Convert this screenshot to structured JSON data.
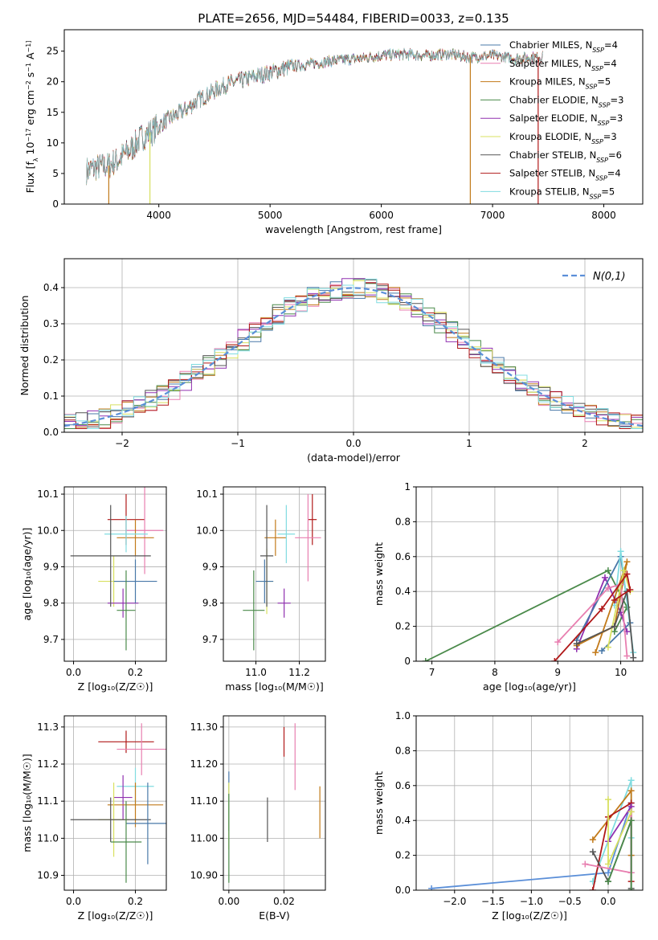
{
  "figure": {
    "title": "PLATE=2656, MJD=54484, FIBERID=0033, z=0.135"
  },
  "chart_data": [
    {
      "id": "spectrum",
      "type": "line",
      "xlabel": "wavelength [Angstrom, rest frame]",
      "ylabel": "Flux [f_λ 10^-17 erg cm^-2 s^-1 A^-1]",
      "xlim": [
        3150,
        8350
      ],
      "ylim": [
        0,
        28.5
      ],
      "xticks": [
        4000,
        5000,
        6000,
        7000,
        8000
      ],
      "yticks": [
        0,
        5,
        10,
        15,
        20,
        25
      ],
      "grid": false,
      "legend_position": "right",
      "continuum": {
        "x": [
          3350,
          3450,
          3550,
          3650,
          3750,
          3850,
          3950,
          4050,
          4150,
          4250,
          4350,
          4450,
          4600,
          4800,
          5000,
          5200,
          5400,
          5600,
          5800,
          6000,
          6200,
          6400,
          6600,
          6800,
          7000,
          7200,
          7400
        ],
        "y": [
          5.5,
          6.0,
          6.3,
          7.5,
          9.0,
          11.0,
          12.0,
          13.5,
          14.5,
          15.5,
          17.0,
          18.0,
          19.5,
          20.5,
          21.5,
          22.5,
          23.0,
          23.5,
          23.8,
          24.3,
          24.5,
          24.3,
          24.5,
          24.0,
          24.3,
          23.8,
          24.0
        ]
      },
      "series": [
        {
          "name": "Chabrier MILES",
          "nssp": "4",
          "color": "#4878a8"
        },
        {
          "name": "Salpeter MILES",
          "nssp": "4",
          "color": "#e87fb0"
        },
        {
          "name": "Kroupa MILES",
          "nssp": "5",
          "color": "#c27a1a"
        },
        {
          "name": "Chabrier ELODIE",
          "nssp": "3",
          "color": "#4a8a4a"
        },
        {
          "name": "Salpeter ELODIE",
          "nssp": "3",
          "color": "#9030b0"
        },
        {
          "name": "Kroupa ELODIE",
          "nssp": "3",
          "color": "#d8e060"
        },
        {
          "name": "Chabrier STELIB",
          "nssp": "6",
          "color": "#555555"
        },
        {
          "name": "Salpeter STELIB",
          "nssp": "4",
          "color": "#b01818"
        },
        {
          "name": "Kroupa STELIB",
          "nssp": "5",
          "color": "#80dce0"
        }
      ]
    },
    {
      "id": "residuals",
      "type": "line",
      "xlabel": "(data-model)/error",
      "ylabel": "Normed distribution",
      "xlim": [
        -2.5,
        2.5
      ],
      "ylim": [
        0,
        0.48
      ],
      "xticks": [
        -2,
        -1,
        0,
        1,
        2
      ],
      "yticks": [
        0.0,
        0.1,
        0.2,
        0.3,
        0.4
      ],
      "grid": true,
      "legend_position": "top-right",
      "reference_label": "N(0,1)",
      "reference_color": "#5b8fd8",
      "bin_width": 0.1
    },
    {
      "id": "Z-age",
      "type": "scatter",
      "xlabel": "Z [log10(Z/Z☉)]",
      "ylabel": "age [log10(age/yr)]",
      "xlim": [
        -0.03,
        0.3
      ],
      "ylim": [
        9.64,
        10.12
      ],
      "xticks": [
        0.0,
        0.2
      ],
      "yticks": [
        9.7,
        9.8,
        9.9,
        10.0,
        10.1
      ],
      "grid": true,
      "points": [
        {
          "x": 0.17,
          "y": 10.03,
          "xerr": 0.06,
          "yerr": 0.07,
          "color": "#b01818"
        },
        {
          "x": 0.23,
          "y": 10.0,
          "xerr": 0.06,
          "yerr": 0.12,
          "color": "#e87fb0"
        },
        {
          "x": 0.2,
          "y": 9.98,
          "xerr": 0.06,
          "yerr": 0.05,
          "color": "#c27a1a"
        },
        {
          "x": 0.17,
          "y": 9.99,
          "xerr": 0.07,
          "yerr": 0.05,
          "color": "#80dce0"
        },
        {
          "x": 0.13,
          "y": 9.86,
          "xerr": 0.05,
          "yerr": 0.07,
          "color": "#d8e060"
        },
        {
          "x": 0.16,
          "y": 9.8,
          "xerr": 0.05,
          "yerr": 0.04,
          "color": "#9030b0"
        },
        {
          "x": 0.2,
          "y": 9.86,
          "xerr": 0.07,
          "yerr": 0.06,
          "color": "#4878a8"
        },
        {
          "x": 0.17,
          "y": 9.78,
          "xerr": 0.03,
          "yerr": 0.11,
          "color": "#4a8a4a"
        },
        {
          "x": 0.12,
          "y": 9.93,
          "xerr": 0.13,
          "yerr": 0.14,
          "color": "#555555"
        }
      ]
    },
    {
      "id": "mass-age",
      "type": "scatter",
      "xlabel": "mass [log10(M/M☉)]",
      "ylabel": "",
      "xlim": [
        10.85,
        11.32
      ],
      "ylim": [
        9.64,
        10.12
      ],
      "xticks": [
        11.0,
        11.2
      ],
      "yticks": [
        9.7,
        9.8,
        9.9,
        10.0,
        10.1
      ],
      "grid": true,
      "points": [
        {
          "x": 11.26,
          "y": 10.03,
          "xerr": 0.02,
          "yerr": 0.07,
          "color": "#b01818"
        },
        {
          "x": 11.24,
          "y": 9.98,
          "xerr": 0.06,
          "yerr": 0.12,
          "color": "#e87fb0"
        },
        {
          "x": 11.09,
          "y": 9.98,
          "xerr": 0.05,
          "yerr": 0.05,
          "color": "#c27a1a"
        },
        {
          "x": 11.14,
          "y": 9.99,
          "xerr": 0.04,
          "yerr": 0.08,
          "color": "#80dce0"
        },
        {
          "x": 11.05,
          "y": 9.86,
          "xerr": 0.03,
          "yerr": 0.09,
          "color": "#d8e060"
        },
        {
          "x": 11.13,
          "y": 9.8,
          "xerr": 0.03,
          "yerr": 0.04,
          "color": "#9030b0"
        },
        {
          "x": 11.04,
          "y": 9.86,
          "xerr": 0.04,
          "yerr": 0.06,
          "color": "#4878a8"
        },
        {
          "x": 10.99,
          "y": 9.78,
          "xerr": 0.05,
          "yerr": 0.11,
          "color": "#4a8a4a"
        },
        {
          "x": 11.05,
          "y": 9.93,
          "xerr": 0.03,
          "yerr": 0.14,
          "color": "#555555"
        }
      ]
    },
    {
      "id": "age-massweight",
      "type": "line",
      "xlabel": "age [log10(age/yr)]",
      "ylabel": "mass weight",
      "xlim": [
        6.75,
        10.35
      ],
      "ylim": [
        0,
        1.0
      ],
      "xticks": [
        7,
        8,
        9,
        10
      ],
      "yticks": [
        0.0,
        0.2,
        0.4,
        0.6,
        0.8,
        1.0
      ],
      "grid": true,
      "series": [
        {
          "color": "#4a8a4a",
          "points": [
            [
              6.9,
              0.0
            ],
            [
              9.8,
              0.52
            ],
            [
              10.1,
              0.31
            ],
            [
              9.9,
              0.17
            ]
          ]
        },
        {
          "color": "#9030b0",
          "points": [
            [
              9.3,
              0.07
            ],
            [
              9.75,
              0.48
            ],
            [
              10.0,
              0.28
            ],
            [
              10.1,
              0.17
            ]
          ]
        },
        {
          "color": "#4878a8",
          "points": [
            [
              9.3,
              0.12
            ],
            [
              10.0,
              0.6
            ],
            [
              10.15,
              0.22
            ],
            [
              9.7,
              0.06
            ]
          ]
        },
        {
          "color": "#80dce0",
          "points": [
            [
              10.2,
              0.05
            ],
            [
              10.0,
              0.63
            ],
            [
              9.9,
              0.32
            ]
          ]
        },
        {
          "color": "#c27a1a",
          "points": [
            [
              9.6,
              0.05
            ],
            [
              10.1,
              0.57
            ],
            [
              9.9,
              0.2
            ],
            [
              9.3,
              0.09
            ]
          ]
        },
        {
          "color": "#e87fb0",
          "points": [
            [
              9.0,
              0.11
            ],
            [
              9.8,
              0.42
            ],
            [
              10.0,
              0.44
            ],
            [
              10.1,
              0.03
            ]
          ]
        },
        {
          "color": "#d8e060",
          "points": [
            [
              9.8,
              0.08
            ],
            [
              10.05,
              0.52
            ],
            [
              10.15,
              0.4
            ]
          ]
        },
        {
          "color": "#555555",
          "points": [
            [
              9.3,
              0.1
            ],
            [
              9.9,
              0.2
            ],
            [
              10.1,
              0.4
            ],
            [
              10.2,
              0.02
            ]
          ]
        },
        {
          "color": "#b01818",
          "points": [
            [
              8.95,
              0.0
            ],
            [
              9.7,
              0.3
            ],
            [
              10.1,
              0.5
            ],
            [
              10.15,
              0.41
            ],
            [
              9.9,
              0.35
            ]
          ]
        }
      ]
    },
    {
      "id": "Z-mass",
      "type": "scatter",
      "xlabel": "Z [log10(Z/Z☉)]",
      "ylabel": "mass [log10(M/M☉)]",
      "xlim": [
        -0.03,
        0.3
      ],
      "ylim": [
        10.86,
        11.33
      ],
      "xticks": [
        0.0,
        0.2
      ],
      "yticks": [
        10.9,
        11.0,
        11.1,
        11.2,
        11.3
      ],
      "grid": true,
      "points": [
        {
          "x": 0.17,
          "y": 11.26,
          "xerr": 0.09,
          "yerr": 0.03,
          "color": "#b01818"
        },
        {
          "x": 0.22,
          "y": 11.24,
          "xerr": 0.08,
          "yerr": 0.07,
          "color": "#e87fb0"
        },
        {
          "x": 0.2,
          "y": 11.14,
          "xerr": 0.06,
          "yerr": 0.05,
          "color": "#80dce0"
        },
        {
          "x": 0.16,
          "y": 11.11,
          "xerr": 0.03,
          "yerr": 0.06,
          "color": "#9030b0"
        },
        {
          "x": 0.2,
          "y": 11.09,
          "xerr": 0.09,
          "yerr": 0.06,
          "color": "#c27a1a"
        },
        {
          "x": 0.13,
          "y": 11.05,
          "xerr": 0.05,
          "yerr": 0.1,
          "color": "#d8e060"
        },
        {
          "x": 0.12,
          "y": 11.05,
          "xerr": 0.13,
          "yerr": 0.06,
          "color": "#555555"
        },
        {
          "x": 0.24,
          "y": 11.04,
          "xerr": 0.07,
          "yerr": 0.11,
          "color": "#4878a8"
        },
        {
          "x": 0.17,
          "y": 10.99,
          "xerr": 0.05,
          "yerr": 0.11,
          "color": "#4a8a4a"
        }
      ]
    },
    {
      "id": "EBV-mass",
      "type": "scatter",
      "xlabel": "E(B-V)",
      "ylabel": "",
      "xlim": [
        -0.002,
        0.035
      ],
      "ylim": [
        10.86,
        11.33
      ],
      "xticks": [
        0.0,
        0.02
      ],
      "yticks": [
        10.9,
        11.0,
        11.1,
        11.2,
        11.3
      ],
      "grid": true,
      "points": [
        {
          "x": 0.02,
          "y": 11.26,
          "xerr": 0.0,
          "yerr": 0.04,
          "color": "#b01818"
        },
        {
          "x": 0.024,
          "y": 11.22,
          "xerr": 0.0,
          "yerr": 0.09,
          "color": "#e87fb0"
        },
        {
          "x": 0.014,
          "y": 11.05,
          "xerr": 0.0,
          "yerr": 0.06,
          "color": "#555555"
        },
        {
          "x": 0.033,
          "y": 11.07,
          "xerr": 0.0,
          "yerr": 0.07,
          "color": "#c27a1a"
        },
        {
          "x": 0.0,
          "y": 11.1,
          "xerr": 0.0,
          "yerr": 0.08,
          "color": "#4878a8"
        },
        {
          "x": 0.0,
          "y": 11.06,
          "xerr": 0.0,
          "yerr": 0.09,
          "color": "#d8e060"
        },
        {
          "x": 0.0,
          "y": 11.0,
          "xerr": 0.0,
          "yerr": 0.12,
          "color": "#4a8a4a"
        }
      ]
    },
    {
      "id": "Z-massweight",
      "type": "line",
      "xlabel": "Z [log10(Z/Z☉)]",
      "ylabel": "mass weight",
      "xlim": [
        -2.5,
        0.45
      ],
      "ylim": [
        0,
        1.0
      ],
      "xticks": [
        -2.0,
        -1.5,
        -1.0,
        -0.5,
        0.0
      ],
      "yticks": [
        0.0,
        0.2,
        0.4,
        0.6,
        0.8,
        1.0
      ],
      "grid": true,
      "series": [
        {
          "color": "#5b8fd8",
          "points": [
            [
              -2.3,
              0.01
            ],
            [
              0.0,
              0.1
            ],
            [
              0.3,
              0.5
            ]
          ]
        },
        {
          "color": "#80dce0",
          "points": [
            [
              -0.2,
              0.05
            ],
            [
              0.3,
              0.63
            ],
            [
              0.3,
              0.3
            ]
          ]
        },
        {
          "color": "#c27a1a",
          "points": [
            [
              -0.2,
              0.29
            ],
            [
              0.3,
              0.57
            ],
            [
              0.3,
              0.2
            ]
          ]
        },
        {
          "color": "#b01818",
          "points": [
            [
              -0.2,
              0.0
            ],
            [
              0.0,
              0.42
            ],
            [
              0.3,
              0.5
            ],
            [
              0.3,
              0.05
            ]
          ]
        },
        {
          "color": "#555555",
          "points": [
            [
              -0.2,
              0.22
            ],
            [
              0.0,
              0.05
            ],
            [
              0.3,
              0.4
            ],
            [
              0.3,
              0.01
            ]
          ]
        },
        {
          "color": "#9030b0",
          "points": [
            [
              0.0,
              0.28
            ],
            [
              0.3,
              0.48
            ],
            [
              0.3,
              0.1
            ]
          ]
        },
        {
          "color": "#e87fb0",
          "points": [
            [
              -0.3,
              0.15
            ],
            [
              0.3,
              0.1
            ],
            [
              0.3,
              0.45
            ]
          ]
        },
        {
          "color": "#d8e060",
          "points": [
            [
              0.0,
              0.52
            ],
            [
              0.0,
              0.15
            ],
            [
              0.3,
              0.45
            ]
          ]
        },
        {
          "color": "#4a8a4a",
          "points": [
            [
              0.0,
              0.05
            ],
            [
              0.3,
              0.4
            ],
            [
              0.3,
              0.0
            ]
          ]
        }
      ]
    }
  ]
}
